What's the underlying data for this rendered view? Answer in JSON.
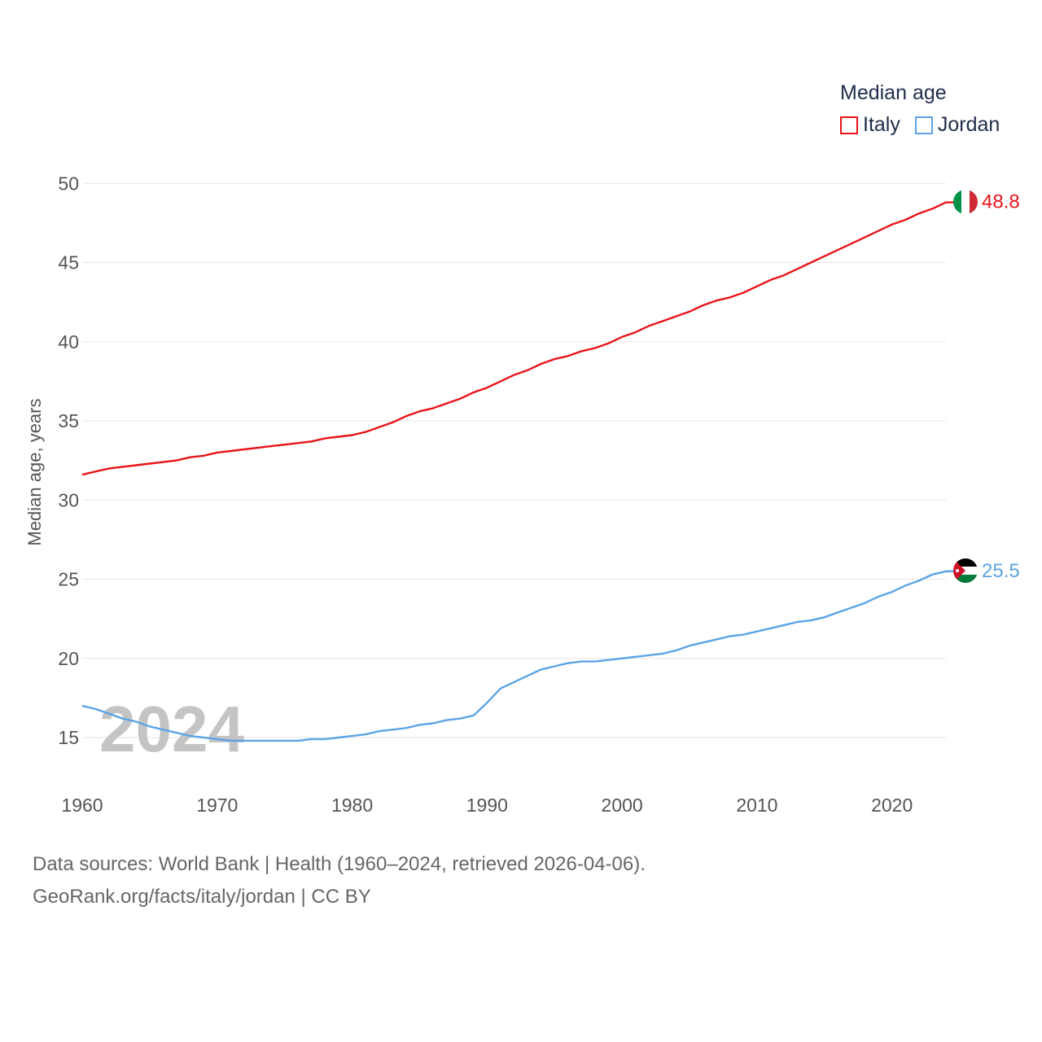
{
  "legend": {
    "title": "Median age",
    "items": [
      {
        "label": "Italy",
        "color": "#e8141a"
      },
      {
        "label": "Jordan",
        "color": "#5ba4e5"
      }
    ]
  },
  "year_watermark": "2024",
  "footer": {
    "line1": "Data sources: World Bank | Health (1960–2024, retrieved 2026-04-06).",
    "line2": "GeoRank.org/facts/italy/jordan | CC BY"
  },
  "chart_data": {
    "type": "line",
    "title": "Median age",
    "ylabel": "Median age, years",
    "xlabel": "",
    "xlim": [
      1960,
      2024
    ],
    "ylim": [
      12,
      51
    ],
    "x_ticks": [
      1960,
      1970,
      1980,
      1990,
      2000,
      2010,
      2020
    ],
    "y_ticks": [
      15,
      20,
      25,
      30,
      35,
      40,
      45,
      50
    ],
    "grid": true,
    "legend_position": "top-right",
    "x": [
      1960,
      1961,
      1962,
      1963,
      1964,
      1965,
      1966,
      1967,
      1968,
      1969,
      1970,
      1971,
      1972,
      1973,
      1974,
      1975,
      1976,
      1977,
      1978,
      1979,
      1980,
      1981,
      1982,
      1983,
      1984,
      1985,
      1986,
      1987,
      1988,
      1989,
      1990,
      1991,
      1992,
      1993,
      1994,
      1995,
      1996,
      1997,
      1998,
      1999,
      2000,
      2001,
      2002,
      2003,
      2004,
      2005,
      2006,
      2007,
      2008,
      2009,
      2010,
      2011,
      2012,
      2013,
      2014,
      2015,
      2016,
      2017,
      2018,
      2019,
      2020,
      2021,
      2022,
      2023,
      2024
    ],
    "series": [
      {
        "name": "Italy",
        "color": "#e8141a",
        "end_label": "48.8",
        "values": [
          31.6,
          31.8,
          32.0,
          32.1,
          32.2,
          32.3,
          32.4,
          32.5,
          32.7,
          32.8,
          33.0,
          33.1,
          33.2,
          33.3,
          33.4,
          33.5,
          33.6,
          33.7,
          33.9,
          34.0,
          34.1,
          34.3,
          34.6,
          34.9,
          35.3,
          35.6,
          35.8,
          36.1,
          36.4,
          36.8,
          37.1,
          37.5,
          37.9,
          38.2,
          38.6,
          38.9,
          39.1,
          39.4,
          39.6,
          39.9,
          40.3,
          40.6,
          41.0,
          41.3,
          41.6,
          41.9,
          42.3,
          42.6,
          42.8,
          43.1,
          43.5,
          43.9,
          44.2,
          44.6,
          45.0,
          45.4,
          45.8,
          46.2,
          46.6,
          47.0,
          47.4,
          47.7,
          48.1,
          48.4,
          48.8
        ]
      },
      {
        "name": "Jordan",
        "color": "#5ba4e5",
        "end_label": "25.5",
        "values": [
          17.0,
          16.8,
          16.5,
          16.2,
          16.0,
          15.7,
          15.5,
          15.3,
          15.1,
          15.0,
          14.9,
          14.8,
          14.8,
          14.8,
          14.8,
          14.8,
          14.8,
          14.9,
          14.9,
          15.0,
          15.1,
          15.2,
          15.4,
          15.5,
          15.6,
          15.8,
          15.9,
          16.1,
          16.2,
          16.4,
          17.2,
          18.1,
          18.5,
          18.9,
          19.3,
          19.5,
          19.7,
          19.8,
          19.8,
          19.9,
          20.0,
          20.1,
          20.2,
          20.3,
          20.5,
          20.8,
          21.0,
          21.2,
          21.4,
          21.5,
          21.7,
          21.9,
          22.1,
          22.3,
          22.4,
          22.6,
          22.9,
          23.2,
          23.5,
          23.9,
          24.2,
          24.6,
          24.9,
          25.3,
          25.5
        ]
      }
    ]
  }
}
